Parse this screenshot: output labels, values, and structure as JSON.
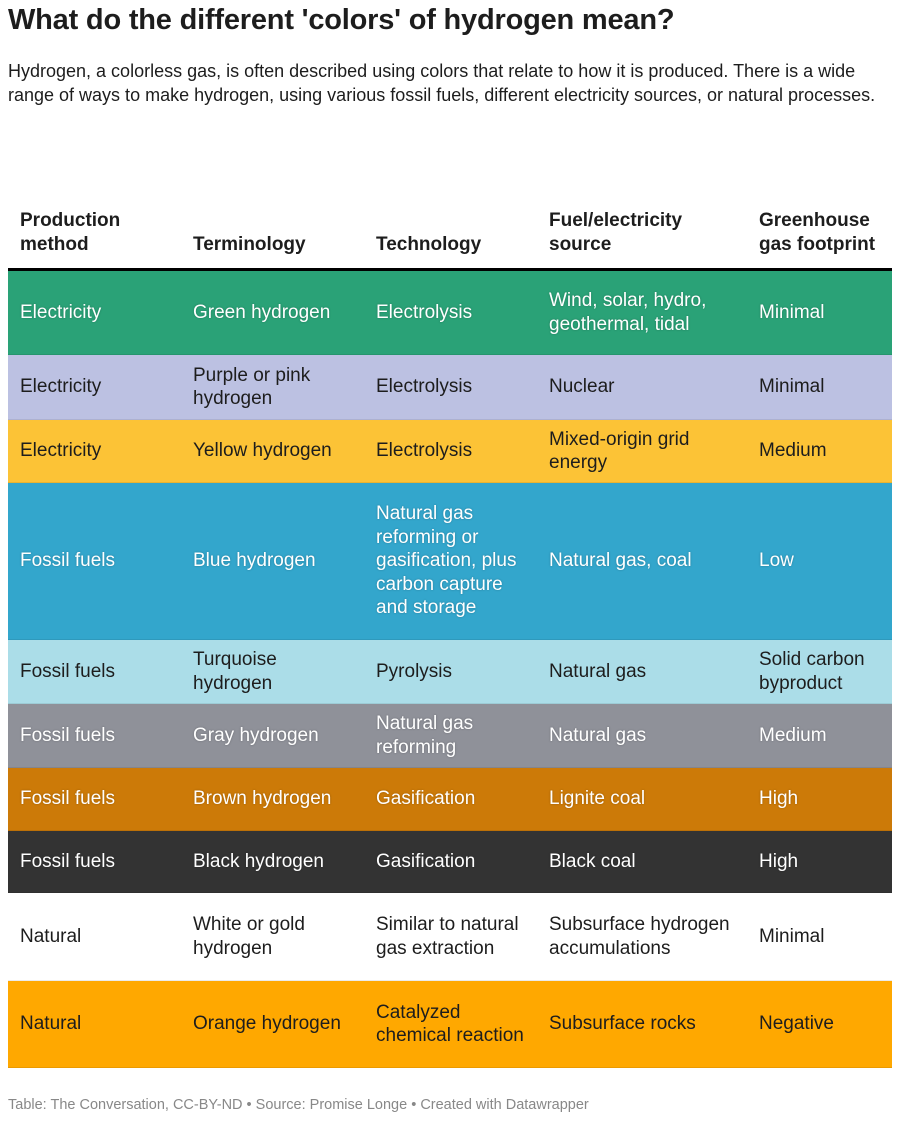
{
  "title": "What do the different 'colors' of hydrogen mean?",
  "description": "Hydrogen, a colorless gas, is often described using colors that relate to how it is produced. There is a wide range of ways to make hydrogen, using various fossil fuels, different electricity sources, or natural processes.",
  "footer": "Table: The Conversation, CC-BY-ND • Source: Promise Longe • Created with Datawrapper",
  "chart_data": {
    "type": "table",
    "columns": [
      "Production method",
      "Terminology",
      "Technology",
      "Fuel/electricity source",
      "Greenhouse gas footprint"
    ],
    "rows": [
      {
        "cells": [
          "Electricity",
          "Green hydrogen",
          "Electrolysis",
          "Wind, solar, hydro, geothermal, tidal",
          "Minimal"
        ],
        "color": "#2aa277",
        "text": "light"
      },
      {
        "cells": [
          "Electricity",
          "Purple or pink hydrogen",
          "Electrolysis",
          "Nuclear",
          "Minimal"
        ],
        "color": "#bcc1e2",
        "text": "dark"
      },
      {
        "cells": [
          "Electricity",
          "Yellow hydrogen",
          "Electrolysis",
          "Mixed-origin grid energy",
          "Medium"
        ],
        "color": "#fcc336",
        "text": "dark"
      },
      {
        "cells": [
          "Fossil fuels",
          "Blue hydrogen",
          "Natural gas reforming or gasification, plus carbon capture and storage",
          "Natural gas, coal",
          "Low"
        ],
        "color": "#33a6cc",
        "text": "light"
      },
      {
        "cells": [
          "Fossil fuels",
          "Turquoise hydrogen",
          "Pyrolysis",
          "Natural gas",
          "Solid carbon byproduct"
        ],
        "color": "#abdde8",
        "text": "dark"
      },
      {
        "cells": [
          "Fossil fuels",
          "Gray hydrogen",
          "Natural gas reforming",
          "Natural gas",
          "Medium"
        ],
        "color": "#8f9199",
        "text": "light"
      },
      {
        "cells": [
          "Fossil fuels",
          "Brown hydrogen",
          "Gasification",
          "Lignite coal",
          "High"
        ],
        "color": "#cc7a08",
        "text": "light"
      },
      {
        "cells": [
          "Fossil fuels",
          "Black hydrogen",
          "Gasification",
          "Black coal",
          "High"
        ],
        "color": "#333333",
        "text": "light"
      },
      {
        "cells": [
          "Natural",
          "White or gold hydrogen",
          "Similar to natural gas extraction",
          "Subsurface hydrogen accumulations",
          "Minimal"
        ],
        "color": "#ffffff",
        "text": "dark"
      },
      {
        "cells": [
          "Natural",
          "Orange hydrogen",
          "Catalyzed chemical reaction",
          "Subsurface rocks",
          "Negative"
        ],
        "color": "#ffa800",
        "text": "dark"
      }
    ]
  }
}
